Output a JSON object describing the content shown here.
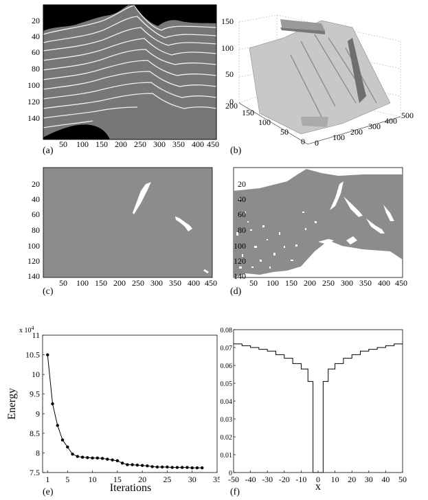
{
  "panels": {
    "a": {
      "label": "(a)",
      "yticks": [
        "20",
        "40",
        "60",
        "80",
        "100",
        "120",
        "140"
      ],
      "xticks": [
        "50",
        "100",
        "150",
        "200",
        "250",
        "300",
        "350",
        "400",
        "450"
      ]
    },
    "b": {
      "label": "(b)",
      "zticks": [
        "0",
        "50",
        "100",
        "150"
      ],
      "yticks": [
        "0",
        "50",
        "100",
        "150",
        "200"
      ],
      "xticks": [
        "0",
        "100",
        "200",
        "300",
        "400",
        "500"
      ]
    },
    "c": {
      "label": "(c)",
      "yticks": [
        "20",
        "40",
        "60",
        "80",
        "100",
        "120",
        "140"
      ],
      "xticks": [
        "50",
        "100",
        "150",
        "200",
        "250",
        "300",
        "350",
        "400",
        "450"
      ]
    },
    "d": {
      "label": "(d)",
      "yticks": [
        "20",
        "40",
        "60",
        "80",
        "100",
        "120",
        "140"
      ],
      "xticks": [
        "50",
        "100",
        "150",
        "200",
        "250",
        "300",
        "350",
        "400",
        "450"
      ]
    },
    "e": {
      "label": "(e)",
      "xlabel": "Iterations",
      "ylabel": "Energy",
      "exponent": "x 10",
      "exponent_power": "4"
    },
    "f": {
      "label": "(f)",
      "xlabel": "x"
    }
  },
  "chart_data": [
    {
      "type": "line",
      "panel": "e",
      "xlabel": "Iterations",
      "ylabel": "Energy",
      "y_multiplier": "x 10^4",
      "xlim": [
        0,
        35
      ],
      "ylim": [
        7.5,
        11
      ],
      "xticks": [
        1,
        5,
        10,
        15,
        20,
        25,
        30,
        35
      ],
      "yticks": [
        7.5,
        8,
        8.5,
        9,
        9.5,
        10,
        10.5,
        11
      ],
      "x": [
        1,
        2,
        3,
        4,
        5,
        6,
        7,
        8,
        9,
        10,
        11,
        12,
        13,
        14,
        15,
        16,
        17,
        18,
        19,
        20,
        21,
        22,
        23,
        24,
        25,
        26,
        27,
        28,
        29,
        30,
        31,
        32
      ],
      "values": [
        10.5,
        9.25,
        8.7,
        8.33,
        8.15,
        7.97,
        7.91,
        7.89,
        7.88,
        7.87,
        7.87,
        7.86,
        7.84,
        7.82,
        7.8,
        7.74,
        7.7,
        7.7,
        7.69,
        7.68,
        7.67,
        7.65,
        7.64,
        7.64,
        7.64,
        7.63,
        7.63,
        7.63,
        7.63,
        7.62,
        7.62,
        7.62
      ]
    },
    {
      "type": "line",
      "panel": "f",
      "xlabel": "x",
      "xlim": [
        -50,
        50
      ],
      "ylim": [
        0,
        0.08
      ],
      "xticks": [
        -50,
        -40,
        -30,
        -20,
        -10,
        0,
        10,
        20,
        30,
        40,
        50
      ],
      "yticks": [
        0,
        0.01,
        0.02,
        0.03,
        0.04,
        0.05,
        0.06,
        0.07,
        0.08
      ],
      "steps": [
        {
          "x0": -50,
          "x1": -45,
          "y": 0.072
        },
        {
          "x0": -45,
          "x1": -40,
          "y": 0.071
        },
        {
          "x0": -40,
          "x1": -35,
          "y": 0.07
        },
        {
          "x0": -35,
          "x1": -30,
          "y": 0.069
        },
        {
          "x0": -30,
          "x1": -25,
          "y": 0.068
        },
        {
          "x0": -25,
          "x1": -20,
          "y": 0.066
        },
        {
          "x0": -20,
          "x1": -15,
          "y": 0.064
        },
        {
          "x0": -15,
          "x1": -10,
          "y": 0.061
        },
        {
          "x0": -10,
          "x1": -6,
          "y": 0.058
        },
        {
          "x0": -6,
          "x1": -3,
          "y": 0.051
        },
        {
          "x0": -3,
          "x1": 3,
          "y": 0
        },
        {
          "x0": 3,
          "x1": 6,
          "y": 0.051
        },
        {
          "x0": 6,
          "x1": 10,
          "y": 0.058
        },
        {
          "x0": 10,
          "x1": 15,
          "y": 0.061
        },
        {
          "x0": 15,
          "x1": 20,
          "y": 0.064
        },
        {
          "x0": 20,
          "x1": 25,
          "y": 0.066
        },
        {
          "x0": 25,
          "x1": 30,
          "y": 0.068
        },
        {
          "x0": 30,
          "x1": 35,
          "y": 0.069
        },
        {
          "x0": 35,
          "x1": 40,
          "y": 0.07
        },
        {
          "x0": 40,
          "x1": 45,
          "y": 0.071
        },
        {
          "x0": 45,
          "x1": 50,
          "y": 0.072
        }
      ]
    }
  ]
}
